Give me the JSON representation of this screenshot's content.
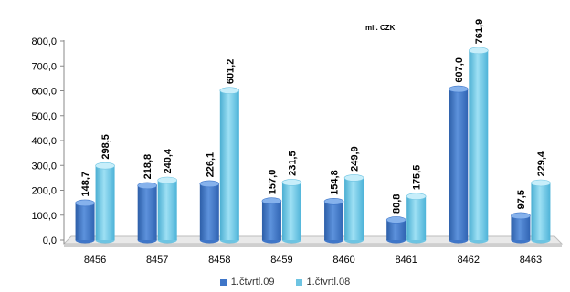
{
  "chart_data": {
    "type": "bar",
    "unit_label": "mil. CZK",
    "categories": [
      "8456",
      "8457",
      "8458",
      "8459",
      "8460",
      "8461",
      "8462",
      "8463"
    ],
    "series": [
      {
        "name": "1.čtvrtl.09",
        "color": "#3f76c8",
        "values": [
          148.7,
          218.8,
          226.1,
          157.0,
          154.8,
          80.8,
          607.0,
          97.5
        ],
        "labels": [
          "148,7",
          "218,8",
          "226,1",
          "157,0",
          "154,8",
          "80,8",
          "607,0",
          "97,5"
        ]
      },
      {
        "name": "1.čtvrtl.08",
        "color": "#6ec4e2",
        "values": [
          298.5,
          240.4,
          601.2,
          231.5,
          249.9,
          175.5,
          761.9,
          229.4
        ],
        "labels": [
          "298,5",
          "240,4",
          "601,2",
          "231,5",
          "249,9",
          "175,5",
          "761,9",
          "229,4"
        ]
      }
    ],
    "y_ticks": [
      "0,0",
      "100,0",
      "200,0",
      "300,0",
      "400,0",
      "500,0",
      "600,0",
      "700,0",
      "800,0"
    ],
    "ylim": [
      0,
      800
    ],
    "grid": false,
    "legend_position": "bottom"
  }
}
